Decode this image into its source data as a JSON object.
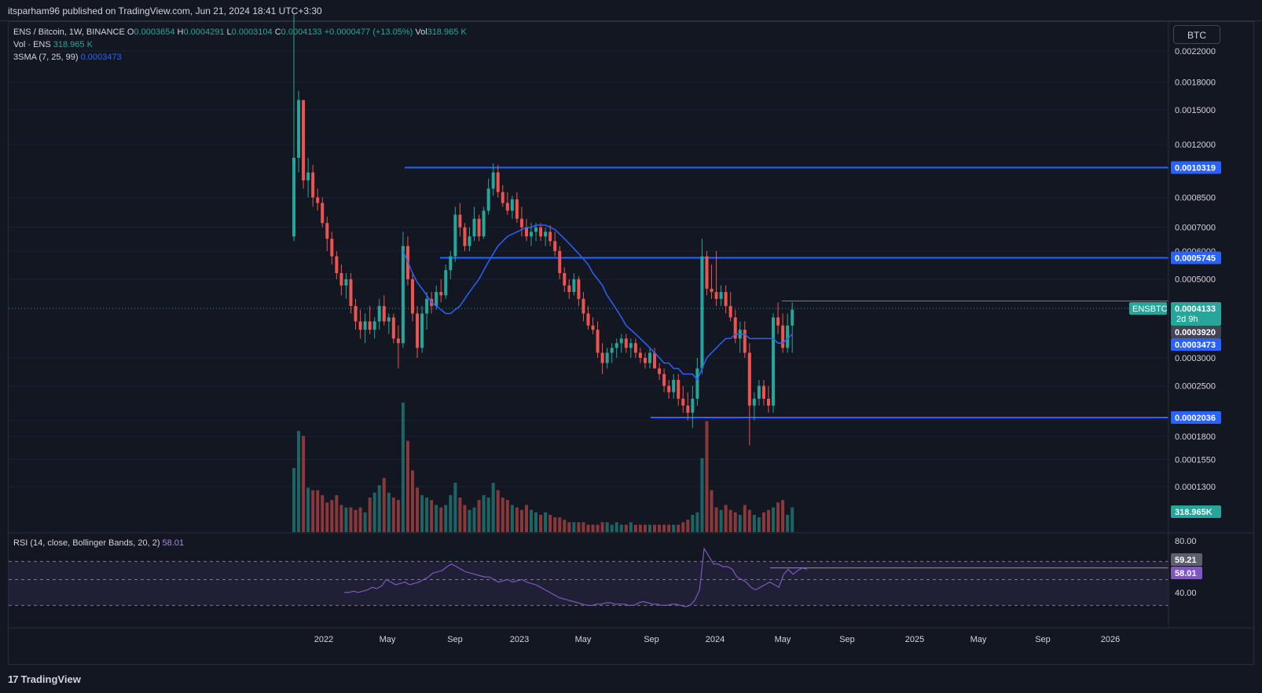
{
  "header": {
    "published": "itsparham96 published on TradingView.com, Jun 21, 2024 18:41 UTC+3:30"
  },
  "legend": {
    "symbol": "ENS / Bitcoin, 1W, BINANCE",
    "o_label": "O",
    "o": "0.0003654",
    "h_label": "H",
    "h": "0.0004291",
    "l_label": "L",
    "l": "0.0003104",
    "c_label": "C",
    "c": "0.0004133",
    "change": "+0.0000477 (+13.05%)",
    "vol_label": "Vol",
    "vol": "318.965 K",
    "vol_line_label": "Vol · ENS",
    "vol_line_value": "318.965 K",
    "sma_label": "3SMA (7, 25, 99)",
    "sma_value": "0.0003473",
    "rsi_label": "RSI (14, close, Bollinger Bands, 20, 2)",
    "rsi_value": "58.01"
  },
  "toolbar": {
    "unit_button": "BTC"
  },
  "footer": {
    "brand": "TradingView"
  },
  "chart_data": {
    "type": "candlestick",
    "symbol": "ENSBTC",
    "timeframe": "1W",
    "exchange": "BINANCE",
    "y_scale": "log",
    "price_ticks": [
      0.0022,
      0.0018,
      0.0015,
      0.0012,
      0.00085,
      0.0007,
      0.0006,
      0.0005,
      0.0003,
      0.00025,
      0.0002,
      0.00018,
      0.000155,
      0.00013
    ],
    "price_tick_labels": [
      "0.0022000",
      "0.0018000",
      "0.0015000",
      "0.0012000",
      "0.0008500",
      "0.0007000",
      "0.0006000",
      "0.0005000",
      "0.0003000",
      "0.0002500",
      "0.0002000",
      "0.0001800",
      "0.0001550",
      "0.0001300"
    ],
    "x_ticks": [
      "2022",
      "May",
      "Sep",
      "2023",
      "May",
      "Sep",
      "2024",
      "May",
      "Sep",
      "2025",
      "May",
      "Sep",
      "2026"
    ],
    "horizontal_lines": [
      {
        "price": 0.0010319,
        "label": "0.0010319",
        "start": "2022-06",
        "color": "#2962ff"
      },
      {
        "price": 0.0005745,
        "label": "0.0005745",
        "start": "2022-07",
        "color": "#2962ff"
      },
      {
        "price": 0.0002036,
        "label": "0.0002036",
        "start": "2023-09",
        "color": "#2962ff"
      }
    ],
    "current_price": {
      "symbol": "ENSBTC",
      "value": "0.0004133",
      "countdown": "2d 9h"
    },
    "price_labels": [
      {
        "value": "0.0003920",
        "color": "#434651"
      },
      {
        "value": "0.0003473",
        "color": "#2962ff"
      }
    ],
    "volume_label": "318.965K",
    "ohlc": [
      [
        0.00066,
        0.0028,
        0.00064,
        0.0011
      ],
      [
        0.0011,
        0.0017,
        0.001,
        0.0016
      ],
      [
        0.0016,
        0.0016,
        0.0009,
        0.00095
      ],
      [
        0.00095,
        0.0011,
        0.00085,
        0.001
      ],
      [
        0.001,
        0.00105,
        0.0008,
        0.00085
      ],
      [
        0.00085,
        0.0009,
        0.00078,
        0.00082
      ],
      [
        0.00082,
        0.00085,
        0.0007,
        0.00072
      ],
      [
        0.00072,
        0.00075,
        0.0006,
        0.00065
      ],
      [
        0.00065,
        0.00068,
        0.00055,
        0.00058
      ],
      [
        0.00058,
        0.0006,
        0.0005,
        0.00052
      ],
      [
        0.00052,
        0.00055,
        0.00045,
        0.00048
      ],
      [
        0.00048,
        0.00052,
        0.00044,
        0.0005
      ],
      [
        0.0005,
        0.00052,
        0.0004,
        0.00042
      ],
      [
        0.00042,
        0.00044,
        0.00036,
        0.00038
      ],
      [
        0.00038,
        0.00041,
        0.00034,
        0.00036
      ],
      [
        0.00036,
        0.0004,
        0.00033,
        0.00038
      ],
      [
        0.00038,
        0.00042,
        0.00035,
        0.00036
      ],
      [
        0.00036,
        0.00039,
        0.00034,
        0.00038
      ],
      [
        0.00038,
        0.00044,
        0.00036,
        0.00042
      ],
      [
        0.00042,
        0.00045,
        0.00037,
        0.00038
      ],
      [
        0.00038,
        0.0004,
        0.00035,
        0.00039
      ],
      [
        0.00039,
        0.0004,
        0.00033,
        0.00034
      ],
      [
        0.00034,
        0.00037,
        0.00028,
        0.00033
      ],
      [
        0.00033,
        0.00068,
        0.00032,
        0.00062
      ],
      [
        0.00062,
        0.00066,
        0.00048,
        0.0005
      ],
      [
        0.0005,
        0.00052,
        0.00038,
        0.0004
      ],
      [
        0.0004,
        0.00042,
        0.0003,
        0.00032
      ],
      [
        0.00032,
        0.00042,
        0.00031,
        0.0004
      ],
      [
        0.0004,
        0.00046,
        0.00036,
        0.00044
      ],
      [
        0.00044,
        0.00046,
        0.0004,
        0.00042
      ],
      [
        0.00042,
        0.00048,
        0.00041,
        0.00046
      ],
      [
        0.00046,
        0.0005,
        0.00043,
        0.00045
      ],
      [
        0.00045,
        0.00055,
        0.00044,
        0.00053
      ],
      [
        0.00053,
        0.0006,
        0.0005,
        0.00058
      ],
      [
        0.00058,
        0.0008,
        0.00056,
        0.00076
      ],
      [
        0.00076,
        0.00082,
        0.00066,
        0.0007
      ],
      [
        0.0007,
        0.00072,
        0.0006,
        0.00062
      ],
      [
        0.00062,
        0.0007,
        0.0006,
        0.00066
      ],
      [
        0.00066,
        0.0008,
        0.00064,
        0.00074
      ],
      [
        0.00074,
        0.00076,
        0.00064,
        0.00066
      ],
      [
        0.00066,
        0.0008,
        0.00065,
        0.00078
      ],
      [
        0.00078,
        0.00096,
        0.00076,
        0.0009
      ],
      [
        0.0009,
        0.00106,
        0.00086,
        0.001
      ],
      [
        0.001,
        0.00105,
        0.00085,
        0.00088
      ],
      [
        0.00088,
        0.00092,
        0.0008,
        0.00082
      ],
      [
        0.00082,
        0.00088,
        0.00076,
        0.00078
      ],
      [
        0.00078,
        0.00086,
        0.00074,
        0.00084
      ],
      [
        0.00084,
        0.00088,
        0.00072,
        0.00074
      ],
      [
        0.00074,
        0.0008,
        0.00066,
        0.0007
      ],
      [
        0.0007,
        0.00074,
        0.00064,
        0.00066
      ],
      [
        0.00066,
        0.00072,
        0.00062,
        0.00068
      ],
      [
        0.00068,
        0.00072,
        0.00064,
        0.0007
      ],
      [
        0.0007,
        0.00072,
        0.00064,
        0.00066
      ],
      [
        0.00066,
        0.0007,
        0.00062,
        0.00068
      ],
      [
        0.00068,
        0.00071,
        0.00062,
        0.00064
      ],
      [
        0.00064,
        0.00068,
        0.00058,
        0.0006
      ],
      [
        0.0006,
        0.00062,
        0.0005,
        0.00052
      ],
      [
        0.00052,
        0.00054,
        0.00046,
        0.00048
      ],
      [
        0.00048,
        0.0005,
        0.00044,
        0.00046
      ],
      [
        0.00046,
        0.00052,
        0.00045,
        0.0005
      ],
      [
        0.0005,
        0.00051,
        0.00042,
        0.00044
      ],
      [
        0.00044,
        0.00046,
        0.00038,
        0.0004
      ],
      [
        0.0004,
        0.00042,
        0.00036,
        0.00037
      ],
      [
        0.00037,
        0.00039,
        0.00035,
        0.00036
      ],
      [
        0.00036,
        0.00038,
        0.0003,
        0.00031
      ],
      [
        0.00031,
        0.00033,
        0.00027,
        0.00029
      ],
      [
        0.00029,
        0.00032,
        0.00028,
        0.00031
      ],
      [
        0.00031,
        0.00033,
        0.00029,
        0.00032
      ],
      [
        0.00032,
        0.00034,
        0.0003,
        0.00033
      ],
      [
        0.00033,
        0.00035,
        0.00031,
        0.00034
      ],
      [
        0.00034,
        0.00035,
        0.00031,
        0.00032
      ],
      [
        0.00032,
        0.00034,
        0.0003,
        0.00033
      ],
      [
        0.00033,
        0.00034,
        0.0003,
        0.00031
      ],
      [
        0.00031,
        0.00032,
        0.00029,
        0.0003
      ],
      [
        0.0003,
        0.00031,
        0.00028,
        0.00029
      ],
      [
        0.00029,
        0.00032,
        0.00028,
        0.00031
      ],
      [
        0.00031,
        0.00032,
        0.00028,
        0.00028
      ],
      [
        0.00028,
        0.00029,
        0.00026,
        0.00027
      ],
      [
        0.00027,
        0.00028,
        0.00024,
        0.00025
      ],
      [
        0.00025,
        0.00026,
        0.00023,
        0.00024
      ],
      [
        0.00024,
        0.00027,
        0.00023,
        0.00026
      ],
      [
        0.00026,
        0.00027,
        0.00022,
        0.00023
      ],
      [
        0.00023,
        0.00025,
        0.00021,
        0.00022
      ],
      [
        0.00022,
        0.00024,
        0.0002,
        0.00021
      ],
      [
        0.00021,
        0.00025,
        0.00019,
        0.00023
      ],
      [
        0.00023,
        0.0003,
        0.00022,
        0.00028
      ],
      [
        0.00028,
        0.00065,
        0.00027,
        0.00058
      ],
      [
        0.00058,
        0.0006,
        0.00045,
        0.00047
      ],
      [
        0.00047,
        0.00055,
        0.00044,
        0.00046
      ],
      [
        0.00046,
        0.0006,
        0.00042,
        0.00044
      ],
      [
        0.00044,
        0.00048,
        0.00042,
        0.00046
      ],
      [
        0.00046,
        0.00048,
        0.0004,
        0.00042
      ],
      [
        0.00042,
        0.00046,
        0.00038,
        0.00039
      ],
      [
        0.00039,
        0.00041,
        0.00033,
        0.00034
      ],
      [
        0.00034,
        0.00038,
        0.00031,
        0.00036
      ],
      [
        0.00036,
        0.00038,
        0.0003,
        0.00031
      ],
      [
        0.00031,
        0.00033,
        0.00017,
        0.00022
      ],
      [
        0.00022,
        0.00024,
        0.0002,
        0.00023
      ],
      [
        0.00023,
        0.00026,
        0.00022,
        0.00025
      ],
      [
        0.00025,
        0.00026,
        0.00022,
        0.00023
      ],
      [
        0.00023,
        0.00025,
        0.00021,
        0.00022
      ],
      [
        0.00022,
        0.0004,
        0.00021,
        0.00039
      ],
      [
        0.00039,
        0.00043,
        0.00035,
        0.00037
      ],
      [
        0.00037,
        0.0004,
        0.00031,
        0.00032
      ],
      [
        0.00032,
        0.0004,
        0.00031,
        0.00037
      ],
      [
        0.00037,
        0.00043,
        0.00031,
        0.00041
      ]
    ],
    "volume": [
      52,
      82,
      78,
      36,
      34,
      34,
      30,
      24,
      26,
      30,
      22,
      20,
      20,
      18,
      20,
      16,
      28,
      32,
      38,
      44,
      32,
      28,
      26,
      105,
      74,
      50,
      36,
      30,
      28,
      26,
      22,
      20,
      22,
      30,
      40,
      28,
      22,
      18,
      20,
      26,
      30,
      28,
      40,
      34,
      28,
      26,
      22,
      20,
      18,
      22,
      18,
      16,
      14,
      16,
      14,
      12,
      12,
      10,
      8,
      8,
      8,
      8,
      6,
      6,
      6,
      8,
      8,
      6,
      8,
      6,
      6,
      8,
      6,
      6,
      6,
      6,
      6,
      6,
      6,
      6,
      6,
      6,
      8,
      10,
      14,
      16,
      60,
      90,
      34,
      20,
      18,
      22,
      18,
      16,
      14,
      22,
      18,
      14,
      12,
      16,
      18,
      20,
      24,
      26,
      14,
      20
    ],
    "sma_3": [
      null,
      null,
      null,
      null,
      null,
      null,
      null,
      null,
      null,
      null,
      null,
      null,
      null,
      null,
      null,
      null,
      null,
      null,
      null,
      null,
      null,
      null,
      null,
      0.0006,
      0.00056,
      0.00052,
      0.00049,
      0.00047,
      0.00045,
      0.00043,
      0.00042,
      0.00041,
      0.0004,
      0.0004,
      0.00041,
      0.00042,
      0.00044,
      0.00046,
      0.00048,
      0.0005,
      0.00053,
      0.00056,
      0.00059,
      0.00062,
      0.00064,
      0.00066,
      0.00067,
      0.00068,
      0.00069,
      0.0007,
      0.0007,
      0.00071,
      0.00071,
      0.00071,
      0.0007,
      0.00069,
      0.00067,
      0.00065,
      0.00063,
      0.00061,
      0.00059,
      0.00057,
      0.00055,
      0.00052,
      0.0005,
      0.00048,
      0.00045,
      0.00043,
      0.00041,
      0.00039,
      0.00037,
      0.00036,
      0.00035,
      0.00034,
      0.00033,
      0.00032,
      0.00031,
      0.0003,
      0.00029,
      0.00029,
      0.00028,
      0.00028,
      0.00027,
      0.00027,
      0.00027,
      0.00026,
      0.00028,
      0.0003,
      0.00031,
      0.00032,
      0.00033,
      0.00034,
      0.00034,
      0.00035,
      0.00035,
      0.00035,
      0.00034,
      0.00034,
      0.00034,
      0.00034,
      0.00034,
      0.00034,
      0.00033,
      0.00033,
      0.00034,
      0.00035
    ],
    "rsi": {
      "label": "RSI (14, close, Bollinger Bands, 20, 2)",
      "value": "58.01",
      "upper_band_label": "59.21",
      "ticks": [
        80,
        40
      ],
      "tick_labels": [
        "80.00",
        "40.00"
      ],
      "values": [
        40,
        40,
        41,
        40,
        41,
        42,
        44,
        43,
        45,
        50,
        48,
        46,
        47,
        48,
        46,
        47,
        48,
        50,
        52,
        55,
        56,
        57,
        60,
        62,
        60,
        58,
        56,
        55,
        54,
        53,
        52,
        52,
        50,
        48,
        49,
        50,
        48,
        49,
        50,
        48,
        47,
        46,
        44,
        42,
        40,
        38,
        36,
        35,
        34,
        33,
        32,
        31,
        30,
        30,
        31,
        31,
        32,
        32,
        31,
        31,
        31,
        30,
        30,
        32,
        33,
        32,
        31,
        31,
        30,
        30,
        31,
        31,
        30,
        29,
        30,
        34,
        42,
        74,
        68,
        62,
        62,
        60,
        60,
        58,
        52,
        50,
        48,
        44,
        42,
        44,
        46,
        48,
        46,
        44,
        54,
        58,
        54,
        57,
        59,
        58
      ],
      "bands": {
        "upper": 64,
        "middle": 50,
        "lower": 30
      }
    }
  }
}
